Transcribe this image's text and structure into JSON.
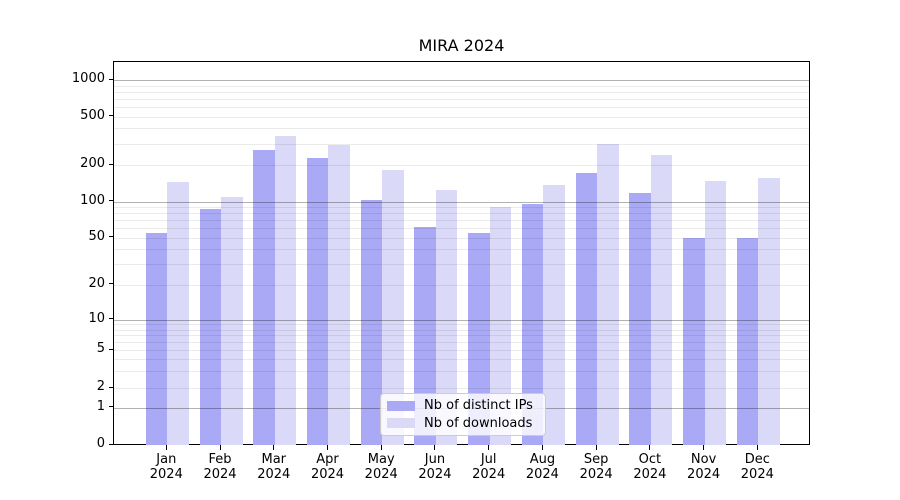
{
  "title": "MIRA 2024",
  "chart_data": {
    "type": "bar",
    "title": "MIRA 2024",
    "categories": [
      "Jan",
      "Feb",
      "Mar",
      "Apr",
      "May",
      "Jun",
      "Jul",
      "Aug",
      "Sep",
      "Oct",
      "Nov",
      "Dec"
    ],
    "year_label": "2024",
    "series": [
      {
        "name": "Nb of distinct IPs",
        "color": "#a9a9f6",
        "values": [
          55,
          86,
          265,
          230,
          104,
          61,
          55,
          96,
          172,
          117,
          50,
          50
        ]
      },
      {
        "name": "Nb of downloads",
        "color": "#dadaf8",
        "values": [
          145,
          110,
          345,
          295,
          183,
          125,
          90,
          138,
          298,
          244,
          148,
          158
        ]
      }
    ],
    "xlabel": "",
    "ylabel": "",
    "y_axis": {
      "scale": "symlog",
      "tick_values": [
        0,
        1,
        2,
        5,
        10,
        20,
        50,
        100,
        200,
        500,
        1000
      ],
      "tick_labels": [
        "0",
        "1",
        "2",
        "5",
        "10",
        "20",
        "50",
        "100",
        "200",
        "500",
        "1000"
      ],
      "major_grid_values": [
        1,
        10,
        100,
        1000
      ],
      "ylim": [
        0,
        1400
      ]
    },
    "grid": true,
    "legend_position": "inside lower-center"
  }
}
